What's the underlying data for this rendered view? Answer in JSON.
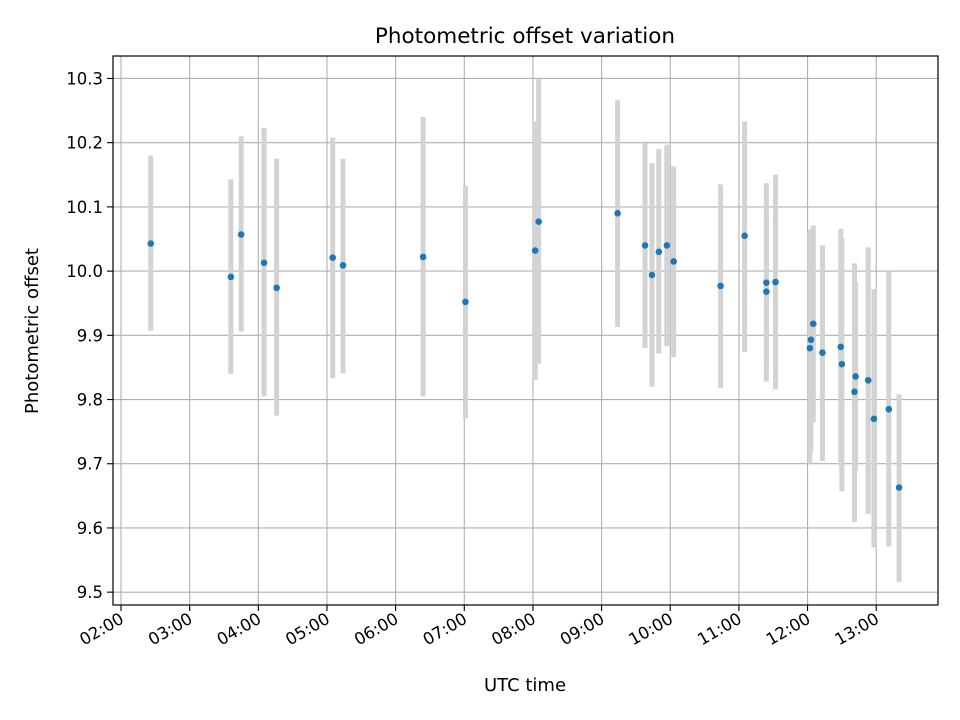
{
  "chart_data": {
    "type": "scatter",
    "title": "Photometric offset variation",
    "xlabel": "UTC time",
    "ylabel": "Photometric offset",
    "x_unit": "hours UTC",
    "xlim": [
      "01:53",
      "13:54"
    ],
    "ylim": [
      9.48,
      10.335
    ],
    "x_ticks": [
      "02:00",
      "03:00",
      "04:00",
      "05:00",
      "06:00",
      "07:00",
      "08:00",
      "09:00",
      "10:00",
      "11:00",
      "12:00",
      "13:00"
    ],
    "y_ticks": [
      "9.5",
      "9.6",
      "9.7",
      "9.8",
      "9.9",
      "10.0",
      "10.1",
      "10.2",
      "10.3"
    ],
    "grid": true,
    "point_color": "#1f77b4",
    "errorbar_color": "#d3d3d3",
    "points": [
      {
        "x": "02:26",
        "y": 10.043,
        "ylo": 9.907,
        "yhi": 10.18
      },
      {
        "x": "03:36",
        "y": 9.991,
        "ylo": 9.84,
        "yhi": 10.143
      },
      {
        "x": "03:45",
        "y": 10.057,
        "ylo": 9.906,
        "yhi": 10.21
      },
      {
        "x": "04:05",
        "y": 10.013,
        "ylo": 9.805,
        "yhi": 10.223
      },
      {
        "x": "04:16",
        "y": 9.974,
        "ylo": 9.775,
        "yhi": 10.175
      },
      {
        "x": "05:05",
        "y": 10.021,
        "ylo": 9.833,
        "yhi": 10.208
      },
      {
        "x": "05:14",
        "y": 10.009,
        "ylo": 9.841,
        "yhi": 10.175
      },
      {
        "x": "06:24",
        "y": 10.022,
        "ylo": 9.805,
        "yhi": 10.24
      },
      {
        "x": "07:01",
        "y": 9.952,
        "ylo": 9.771,
        "yhi": 10.133
      },
      {
        "x": "08:02",
        "y": 10.032,
        "ylo": 9.831,
        "yhi": 10.233
      },
      {
        "x": "08:05",
        "y": 10.077,
        "ylo": 9.856,
        "yhi": 10.299
      },
      {
        "x": "09:14",
        "y": 10.09,
        "ylo": 9.913,
        "yhi": 10.266
      },
      {
        "x": "09:38",
        "y": 10.04,
        "ylo": 9.88,
        "yhi": 10.199
      },
      {
        "x": "09:44",
        "y": 9.994,
        "ylo": 9.82,
        "yhi": 10.168
      },
      {
        "x": "09:50",
        "y": 10.03,
        "ylo": 9.872,
        "yhi": 10.19
      },
      {
        "x": "09:57",
        "y": 10.04,
        "ylo": 9.883,
        "yhi": 10.197
      },
      {
        "x": "10:03",
        "y": 10.015,
        "ylo": 9.866,
        "yhi": 10.163
      },
      {
        "x": "10:44",
        "y": 9.977,
        "ylo": 9.818,
        "yhi": 10.135
      },
      {
        "x": "11:05",
        "y": 10.055,
        "ylo": 9.874,
        "yhi": 10.233
      },
      {
        "x": "11:24",
        "y": 9.982,
        "ylo": 9.828,
        "yhi": 10.137
      },
      {
        "x": "11:24",
        "y": 9.968,
        "ylo": 9.853,
        "yhi": 10.083
      },
      {
        "x": "11:32",
        "y": 9.983,
        "ylo": 9.816,
        "yhi": 10.15
      },
      {
        "x": "12:02",
        "y": 9.88,
        "ylo": 9.7,
        "yhi": 10.062
      },
      {
        "x": "12:03",
        "y": 9.893,
        "ylo": 9.72,
        "yhi": 10.065
      },
      {
        "x": "12:05",
        "y": 9.918,
        "ylo": 9.765,
        "yhi": 10.071
      },
      {
        "x": "12:13",
        "y": 9.873,
        "ylo": 9.704,
        "yhi": 10.04
      },
      {
        "x": "12:29",
        "y": 9.882,
        "ylo": 9.697,
        "yhi": 10.066
      },
      {
        "x": "12:30",
        "y": 9.855,
        "ylo": 9.657,
        "yhi": 10.052
      },
      {
        "x": "12:41",
        "y": 9.812,
        "ylo": 9.609,
        "yhi": 10.012
      },
      {
        "x": "12:42",
        "y": 9.836,
        "ylo": 9.689,
        "yhi": 9.983
      },
      {
        "x": "12:53",
        "y": 9.83,
        "ylo": 9.622,
        "yhi": 10.037
      },
      {
        "x": "12:58",
        "y": 9.77,
        "ylo": 9.57,
        "yhi": 9.972
      },
      {
        "x": "13:11",
        "y": 9.785,
        "ylo": 9.571,
        "yhi": 9.999
      },
      {
        "x": "13:20",
        "y": 9.663,
        "ylo": 9.516,
        "yhi": 9.808
      }
    ]
  }
}
